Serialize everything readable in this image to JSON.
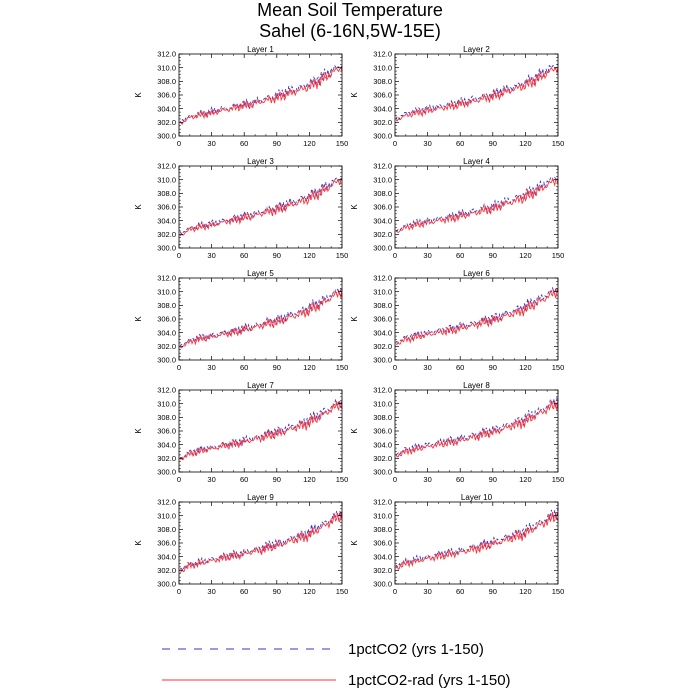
{
  "figure": {
    "title_line1": "Mean Soil Temperature",
    "title_line2": "Sahel (6-16N,5W-15E)"
  },
  "colors": {
    "series1": "#3333cc",
    "series2": "#ff3333",
    "axis": "#000000"
  },
  "chart_data": [
    {
      "type": "line",
      "title": "Layer 1",
      "ylabel": "K",
      "xlim": [
        0,
        150
      ],
      "ylim": [
        300,
        312
      ],
      "xticks": [
        0,
        30,
        60,
        90,
        120,
        150
      ],
      "yticks": [
        "300.0",
        "302.0",
        "304.0",
        "306.0",
        "308.0",
        "310.0",
        "312.0"
      ],
      "x_knots": [
        1,
        10,
        30,
        60,
        90,
        120,
        150
      ],
      "series": [
        {
          "name": "1pctCO2 (yrs 1-150)",
          "knots": [
            302.1,
            302.9,
            303.6,
            304.6,
            305.9,
            307.6,
            310.4
          ]
        },
        {
          "name": "1pctCO2-rad (yrs 1-150)",
          "knots": [
            301.8,
            302.7,
            303.4,
            304.4,
            305.6,
            307.2,
            310.1
          ]
        }
      ]
    },
    {
      "type": "line",
      "title": "Layer 2",
      "ylabel": "K",
      "xlim": [
        0,
        150
      ],
      "ylim": [
        300,
        312
      ],
      "xticks": [
        0,
        30,
        60,
        90,
        120,
        150
      ],
      "yticks": [
        "300.0",
        "302.0",
        "304.0",
        "306.0",
        "308.0",
        "310.0",
        "312.0"
      ],
      "x_knots": [
        1,
        10,
        30,
        60,
        90,
        120,
        150
      ],
      "series": [
        {
          "name": "1pctCO2 (yrs 1-150)",
          "knots": [
            302.6,
            303.3,
            304.0,
            304.9,
            306.1,
            307.8,
            310.5
          ]
        },
        {
          "name": "1pctCO2-rad (yrs 1-150)",
          "knots": [
            302.3,
            303.0,
            303.7,
            304.6,
            305.8,
            307.4,
            310.1
          ]
        }
      ]
    },
    {
      "type": "line",
      "title": "Layer 3",
      "ylabel": "K",
      "xlim": [
        0,
        150
      ],
      "ylim": [
        300,
        312
      ],
      "xticks": [
        0,
        30,
        60,
        90,
        120,
        150
      ],
      "yticks": [
        "300.0",
        "302.0",
        "304.0",
        "306.0",
        "308.0",
        "310.0",
        "312.0"
      ],
      "x_knots": [
        1,
        10,
        30,
        60,
        90,
        120,
        150
      ],
      "series": [
        {
          "name": "1pctCO2 (yrs 1-150)",
          "knots": [
            302.1,
            302.9,
            303.6,
            304.6,
            305.9,
            307.6,
            310.4
          ]
        },
        {
          "name": "1pctCO2-rad (yrs 1-150)",
          "knots": [
            301.8,
            302.7,
            303.4,
            304.4,
            305.6,
            307.2,
            310.1
          ]
        }
      ]
    },
    {
      "type": "line",
      "title": "Layer 4",
      "ylabel": "K",
      "xlim": [
        0,
        150
      ],
      "ylim": [
        300,
        312
      ],
      "xticks": [
        0,
        30,
        60,
        90,
        120,
        150
      ],
      "yticks": [
        "300.0",
        "302.0",
        "304.0",
        "306.0",
        "308.0",
        "310.0",
        "312.0"
      ],
      "x_knots": [
        1,
        10,
        30,
        60,
        90,
        120,
        150
      ],
      "series": [
        {
          "name": "1pctCO2 (yrs 1-150)",
          "knots": [
            302.6,
            303.3,
            304.0,
            304.9,
            306.1,
            307.8,
            310.5
          ]
        },
        {
          "name": "1pctCO2-rad (yrs 1-150)",
          "knots": [
            302.3,
            303.0,
            303.7,
            304.6,
            305.8,
            307.4,
            310.1
          ]
        }
      ]
    },
    {
      "type": "line",
      "title": "Layer 5",
      "ylabel": "K",
      "xlim": [
        0,
        150
      ],
      "ylim": [
        300,
        312
      ],
      "xticks": [
        0,
        30,
        60,
        90,
        120,
        150
      ],
      "yticks": [
        "300.0",
        "302.0",
        "304.0",
        "306.0",
        "308.0",
        "310.0",
        "312.0"
      ],
      "x_knots": [
        1,
        10,
        30,
        60,
        90,
        120,
        150
      ],
      "series": [
        {
          "name": "1pctCO2 (yrs 1-150)",
          "knots": [
            302.1,
            302.9,
            303.6,
            304.6,
            305.9,
            307.6,
            310.4
          ]
        },
        {
          "name": "1pctCO2-rad (yrs 1-150)",
          "knots": [
            301.8,
            302.7,
            303.4,
            304.4,
            305.6,
            307.2,
            310.1
          ]
        }
      ]
    },
    {
      "type": "line",
      "title": "Layer 6",
      "ylabel": "K",
      "xlim": [
        0,
        150
      ],
      "ylim": [
        300,
        312
      ],
      "xticks": [
        0,
        30,
        60,
        90,
        120,
        150
      ],
      "yticks": [
        "300.0",
        "302.0",
        "304.0",
        "306.0",
        "308.0",
        "310.0",
        "312.0"
      ],
      "x_knots": [
        1,
        10,
        30,
        60,
        90,
        120,
        150
      ],
      "series": [
        {
          "name": "1pctCO2 (yrs 1-150)",
          "knots": [
            302.6,
            303.3,
            304.0,
            304.9,
            306.1,
            307.8,
            310.5
          ]
        },
        {
          "name": "1pctCO2-rad (yrs 1-150)",
          "knots": [
            302.3,
            303.0,
            303.7,
            304.6,
            305.8,
            307.4,
            310.1
          ]
        }
      ]
    },
    {
      "type": "line",
      "title": "Layer 7",
      "ylabel": "K",
      "xlim": [
        0,
        150
      ],
      "ylim": [
        300,
        312
      ],
      "xticks": [
        0,
        30,
        60,
        90,
        120,
        150
      ],
      "yticks": [
        "300.0",
        "302.0",
        "304.0",
        "306.0",
        "308.0",
        "310.0",
        "312.0"
      ],
      "x_knots": [
        1,
        10,
        30,
        60,
        90,
        120,
        150
      ],
      "series": [
        {
          "name": "1pctCO2 (yrs 1-150)",
          "knots": [
            302.1,
            302.9,
            303.6,
            304.6,
            305.9,
            307.6,
            310.4
          ]
        },
        {
          "name": "1pctCO2-rad (yrs 1-150)",
          "knots": [
            301.8,
            302.7,
            303.4,
            304.4,
            305.6,
            307.2,
            310.1
          ]
        }
      ]
    },
    {
      "type": "line",
      "title": "Layer 8",
      "ylabel": "K",
      "xlim": [
        0,
        150
      ],
      "ylim": [
        300,
        312
      ],
      "xticks": [
        0,
        30,
        60,
        90,
        120,
        150
      ],
      "yticks": [
        "300.0",
        "302.0",
        "304.0",
        "306.0",
        "308.0",
        "310.0",
        "312.0"
      ],
      "x_knots": [
        1,
        10,
        30,
        60,
        90,
        120,
        150
      ],
      "series": [
        {
          "name": "1pctCO2 (yrs 1-150)",
          "knots": [
            302.6,
            303.3,
            304.0,
            304.9,
            306.1,
            307.8,
            310.5
          ]
        },
        {
          "name": "1pctCO2-rad (yrs 1-150)",
          "knots": [
            302.3,
            303.0,
            303.7,
            304.6,
            305.8,
            307.4,
            310.1
          ]
        }
      ]
    },
    {
      "type": "line",
      "title": "Layer 9",
      "ylabel": "K",
      "xlim": [
        0,
        150
      ],
      "ylim": [
        300,
        312
      ],
      "xticks": [
        0,
        30,
        60,
        90,
        120,
        150
      ],
      "yticks": [
        "300.0",
        "302.0",
        "304.0",
        "306.0",
        "308.0",
        "310.0",
        "312.0"
      ],
      "x_knots": [
        1,
        10,
        30,
        60,
        90,
        120,
        150
      ],
      "series": [
        {
          "name": "1pctCO2 (yrs 1-150)",
          "knots": [
            302.1,
            302.9,
            303.6,
            304.6,
            305.9,
            307.6,
            310.4
          ]
        },
        {
          "name": "1pctCO2-rad (yrs 1-150)",
          "knots": [
            301.8,
            302.7,
            303.4,
            304.4,
            305.6,
            307.2,
            310.1
          ]
        }
      ]
    },
    {
      "type": "line",
      "title": "Layer 10",
      "ylabel": "K",
      "xlim": [
        0,
        150
      ],
      "ylim": [
        300,
        312
      ],
      "xticks": [
        0,
        30,
        60,
        90,
        120,
        150
      ],
      "yticks": [
        "300.0",
        "302.0",
        "304.0",
        "306.0",
        "308.0",
        "310.0",
        "312.0"
      ],
      "x_knots": [
        1,
        10,
        30,
        60,
        90,
        120,
        150
      ],
      "series": [
        {
          "name": "1pctCO2 (yrs 1-150)",
          "knots": [
            302.6,
            303.3,
            304.0,
            304.9,
            306.1,
            307.8,
            310.5
          ]
        },
        {
          "name": "1pctCO2-rad (yrs 1-150)",
          "knots": [
            302.3,
            303.0,
            303.7,
            304.6,
            305.8,
            307.4,
            310.1
          ]
        }
      ]
    }
  ],
  "legend": {
    "entries": [
      {
        "label": "1pctCO2 (yrs 1-150)",
        "style": "dashed",
        "color": "#3333cc"
      },
      {
        "label": "1pctCO2-rad (yrs 1-150)",
        "style": "solid",
        "color": "#ff3333"
      }
    ]
  }
}
